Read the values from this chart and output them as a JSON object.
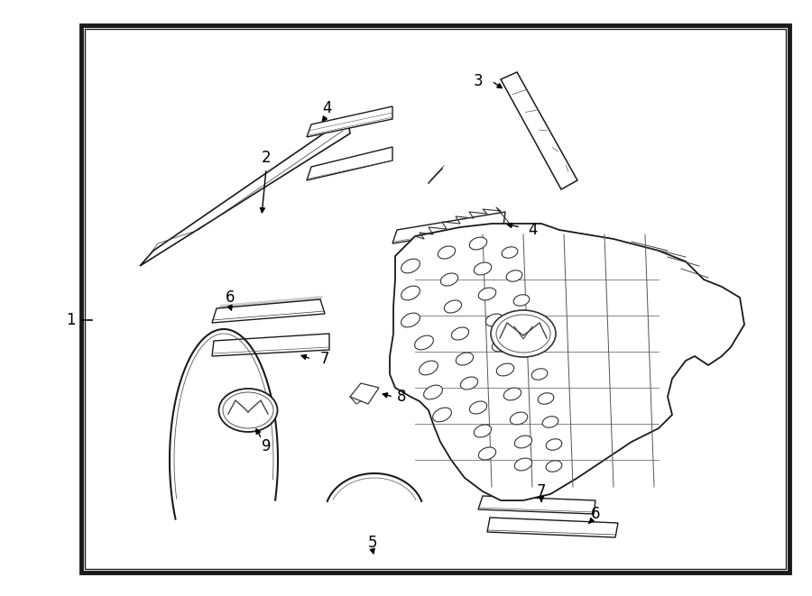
{
  "bg_color": "#ffffff",
  "border_color": "#1a1a1a",
  "text_color": "#000000",
  "fig_width": 9.0,
  "fig_height": 6.61,
  "border": [
    0.1,
    0.045,
    0.875,
    0.935
  ]
}
